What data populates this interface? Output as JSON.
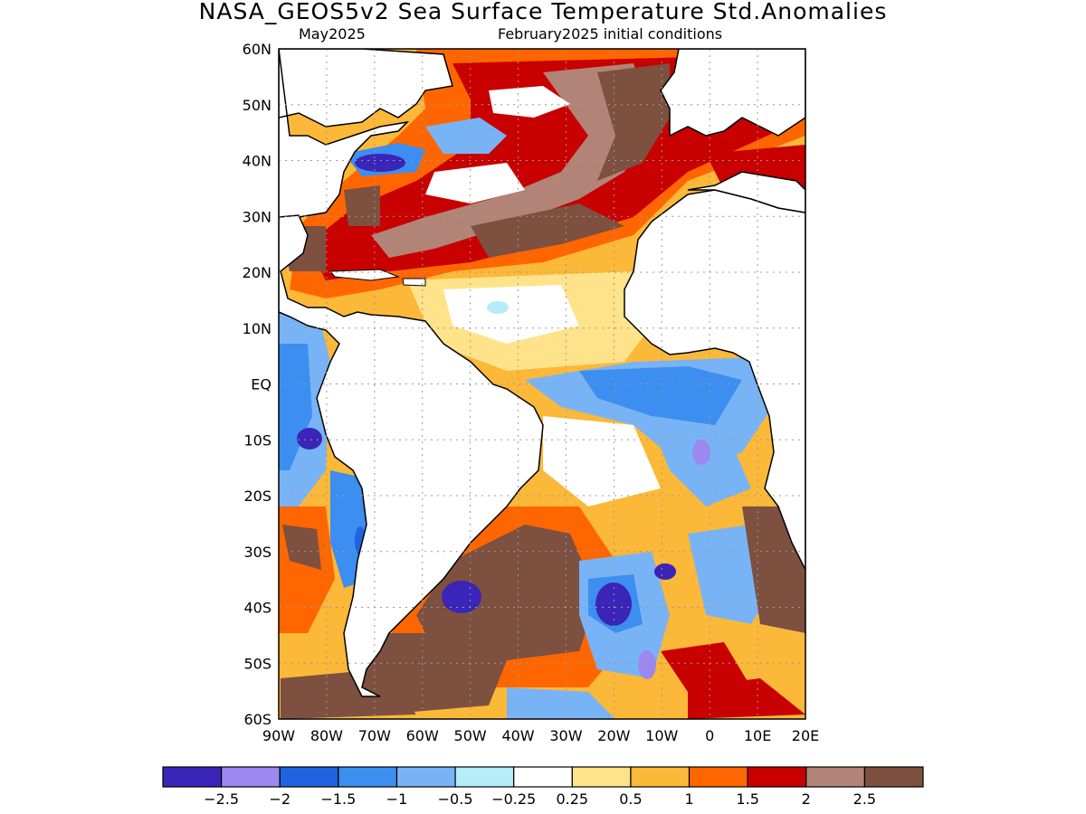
{
  "title": "NASA_GEOS5v2 Sea Surface Temperature Std.Anomalies",
  "subtitle_left": "May2025",
  "subtitle_right": "February2025 initial conditions",
  "map": {
    "lat_labels": [
      "60N",
      "50N",
      "40N",
      "30N",
      "20N",
      "10N",
      "EQ",
      "10S",
      "20S",
      "30S",
      "40S",
      "50S",
      "60S"
    ],
    "lon_labels": [
      "90W",
      "80W",
      "70W",
      "60W",
      "50W",
      "40W",
      "30W",
      "20W",
      "10W",
      "0",
      "10E",
      "20E"
    ],
    "extent": {
      "lon_min": -90,
      "lon_max": 20,
      "lat_min": -60,
      "lat_max": 60
    },
    "grid": true
  },
  "colorbar": {
    "colors": [
      "#3a25b8",
      "#9b88f0",
      "#1f63e0",
      "#3c8ef0",
      "#78b4f5",
      "#b4ecfa",
      "#ffffff",
      "#fee38a",
      "#fcb838",
      "#ff6600",
      "#c80000",
      "#b28478",
      "#7d5040"
    ],
    "labels": [
      "−2.5",
      "−2",
      "−1.5",
      "−1",
      "−0.5",
      "−0.25",
      "0.25",
      "0.5",
      "1",
      "1.5",
      "2",
      "2.5"
    ]
  },
  "palette": {
    "land": "#ffffff",
    "coast": "#000000"
  }
}
